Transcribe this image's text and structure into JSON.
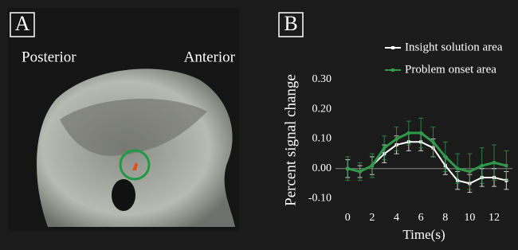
{
  "panel_a": {
    "label": "A",
    "left_label": "Posterior",
    "right_label": "Anterior"
  },
  "chart_data": {
    "type": "line",
    "label": "B",
    "x_label": "Time(s)",
    "y_label": "Percent signal change",
    "x": [
      0,
      1,
      2,
      3,
      4,
      5,
      6,
      7,
      8,
      9,
      10,
      11,
      12,
      13
    ],
    "xlim": [
      -1,
      13.5
    ],
    "xticks": [
      0,
      2,
      4,
      6,
      8,
      10,
      12
    ],
    "ylim": [
      -0.12,
      0.32
    ],
    "yticks": [
      {
        "value": 0.3,
        "label": "0.30"
      },
      {
        "value": 0.2,
        "label": "0.20"
      },
      {
        "value": 0.1,
        "label": "0.10"
      },
      {
        "value": 0,
        "label": "0.00"
      },
      {
        "value": -0.1,
        "label": "-0.10"
      }
    ],
    "series": [
      {
        "name": "Insight solution area",
        "color": "#ffffff",
        "values": [
          0.0,
          -0.01,
          0.01,
          0.05,
          0.08,
          0.09,
          0.09,
          0.07,
          0.01,
          -0.04,
          -0.05,
          -0.03,
          -0.03,
          -0.04
        ],
        "errors": [
          0.03,
          0.02,
          0.03,
          0.03,
          0.03,
          0.03,
          0.03,
          0.03,
          0.03,
          0.03,
          0.03,
          0.03,
          0.03,
          0.03
        ]
      },
      {
        "name": "Problem onset area",
        "color": "#2e9a4a",
        "values": [
          0.0,
          -0.01,
          0.01,
          0.07,
          0.1,
          0.12,
          0.12,
          0.09,
          0.04,
          0.0,
          -0.01,
          0.01,
          0.02,
          0.01
        ],
        "errors": [
          0.04,
          0.03,
          0.04,
          0.04,
          0.04,
          0.04,
          0.05,
          0.05,
          0.05,
          0.05,
          0.06,
          0.06,
          0.06,
          0.05
        ]
      }
    ]
  }
}
